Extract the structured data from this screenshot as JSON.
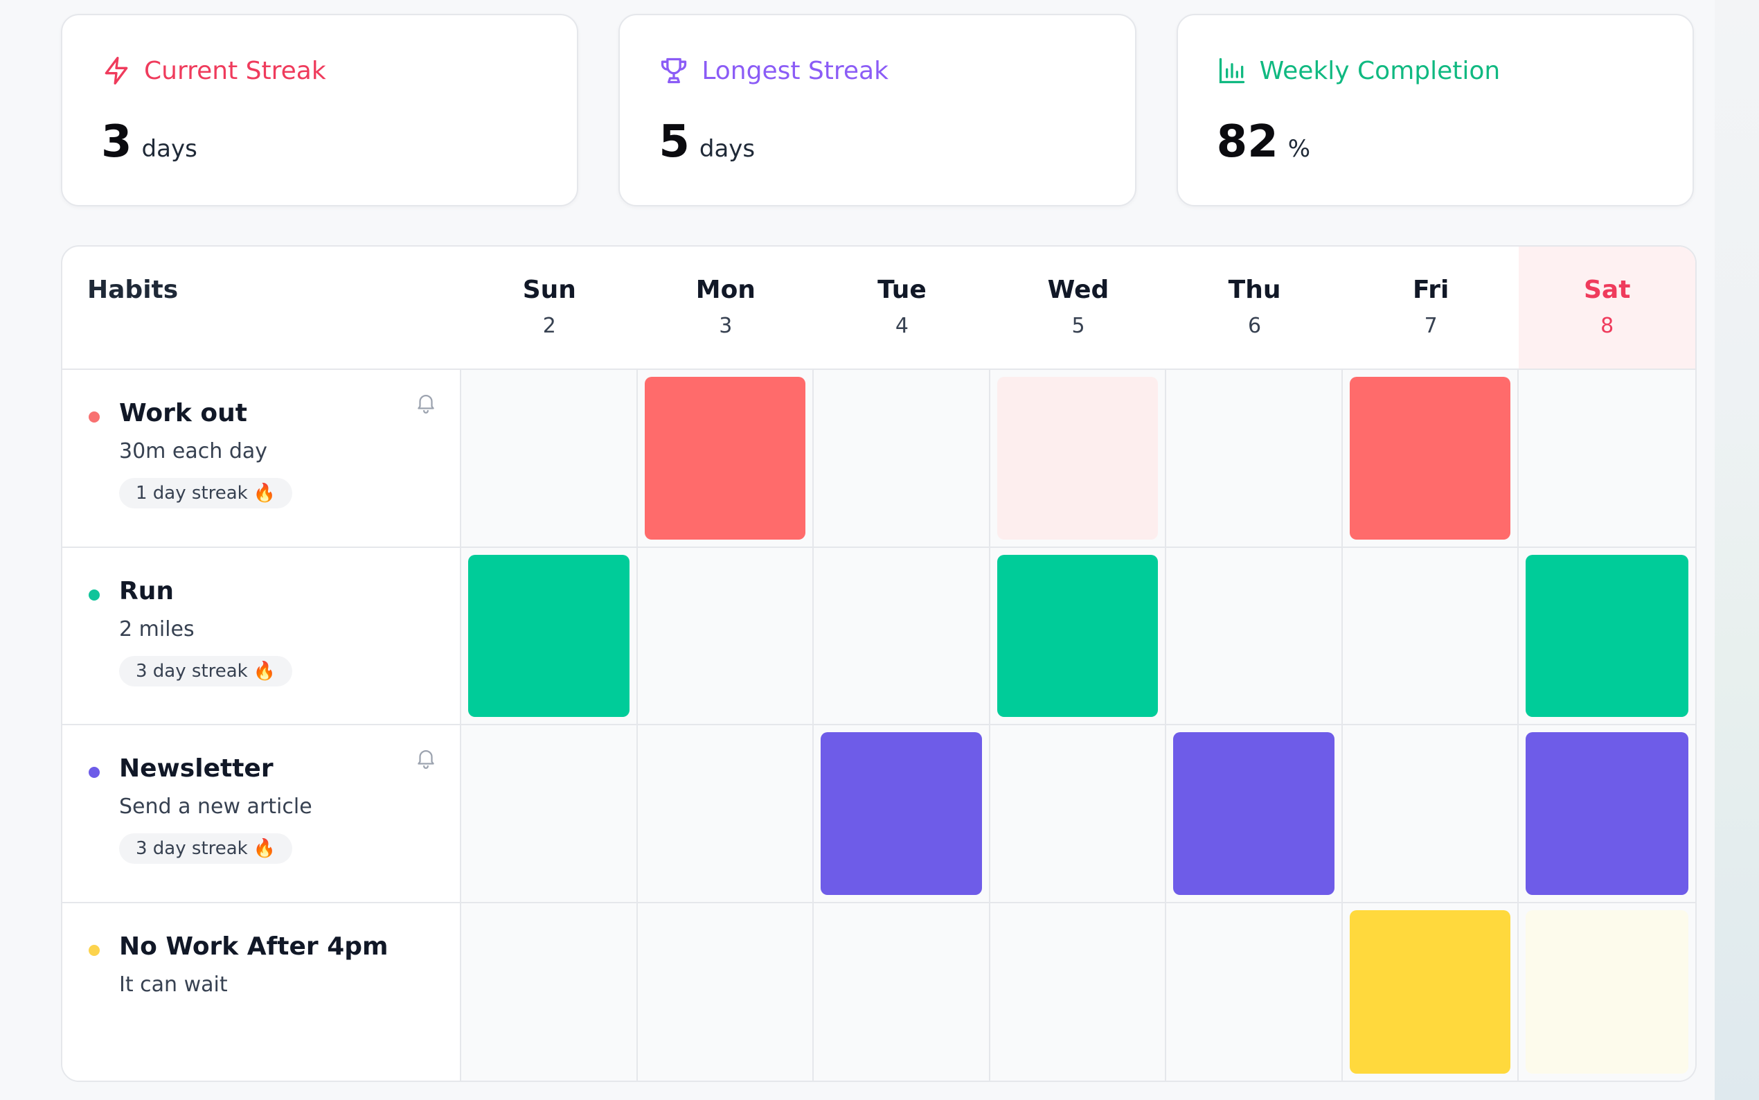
{
  "stats": {
    "current_streak": {
      "label": "Current Streak",
      "value": "3",
      "unit": "days",
      "color": "#ef3b5c",
      "icon": "lightning-icon"
    },
    "longest_streak": {
      "label": "Longest Streak",
      "value": "5",
      "unit": "days",
      "color": "#8b5cf6",
      "icon": "trophy-icon"
    },
    "weekly_completion": {
      "label": "Weekly Completion",
      "value": "82",
      "unit": "%",
      "color": "#10b981",
      "icon": "bar-chart-icon"
    }
  },
  "tracker": {
    "habits_header": "Habits",
    "days": [
      {
        "name": "Sun",
        "num": "2",
        "today": false
      },
      {
        "name": "Mon",
        "num": "3",
        "today": false
      },
      {
        "name": "Tue",
        "num": "4",
        "today": false
      },
      {
        "name": "Wed",
        "num": "5",
        "today": false
      },
      {
        "name": "Thu",
        "num": "6",
        "today": false
      },
      {
        "name": "Fri",
        "num": "7",
        "today": false
      },
      {
        "name": "Sat",
        "num": "8",
        "today": true
      }
    ],
    "habits": [
      {
        "name": "Work out",
        "desc": "30m each day",
        "streak": "1 day streak",
        "reminder": true,
        "color": "#f87171",
        "mark_color": "#ff6b6b",
        "light_color": "#fdeeee",
        "marks": [
          "none",
          "done",
          "none",
          "partial",
          "none",
          "done",
          "none"
        ]
      },
      {
        "name": "Run",
        "desc": "2 miles",
        "streak": "3 day streak",
        "reminder": false,
        "color": "#10c49a",
        "mark_color": "#00cc99",
        "light_color": "#e6faf4",
        "marks": [
          "done",
          "none",
          "none",
          "done",
          "none",
          "none",
          "done"
        ]
      },
      {
        "name": "Newsletter",
        "desc": "Send a new article",
        "streak": "3 day streak",
        "reminder": true,
        "color": "#6d5ce8",
        "mark_color": "#6e5ce8",
        "light_color": "#efecfd",
        "marks": [
          "none",
          "none",
          "done",
          "none",
          "done",
          "none",
          "done"
        ]
      },
      {
        "name": "No Work After 4pm",
        "desc": "It can wait",
        "streak": "",
        "reminder": false,
        "color": "#fcd34d",
        "mark_color": "#ffd93d",
        "light_color": "#fdfbec",
        "marks": [
          "none",
          "none",
          "none",
          "none",
          "none",
          "done",
          "partial"
        ]
      }
    ]
  },
  "streak_emoji": "🔥"
}
